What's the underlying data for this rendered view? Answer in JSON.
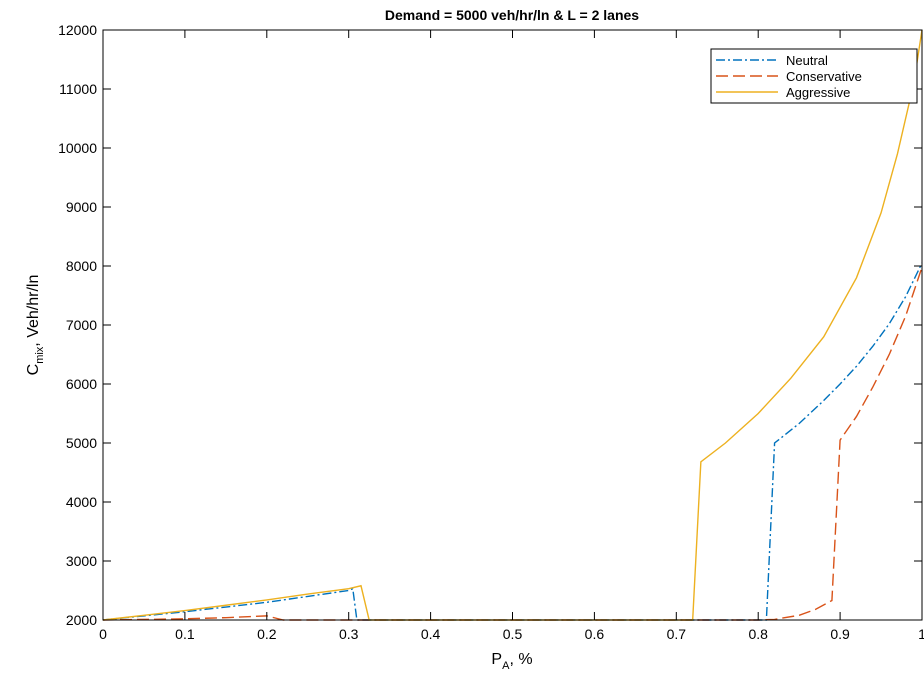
{
  "chart_data": {
    "type": "line",
    "title": "Demand = 5000 veh/hr/ln & L = 2 lanes",
    "xlabel": {
      "main": "P",
      "sub": "A",
      "suffix": ", %"
    },
    "ylabel": {
      "main": "C",
      "sub": "mix",
      "suffix": ", Veh/hr/ln"
    },
    "xlim": [
      0,
      1
    ],
    "ylim": [
      2000,
      12000
    ],
    "xticks": [
      0,
      0.1,
      0.2,
      0.3,
      0.4,
      0.5,
      0.6,
      0.7,
      0.8,
      0.9,
      1
    ],
    "xtick_labels": [
      "0",
      "0.1",
      "0.2",
      "0.3",
      "0.4",
      "0.5",
      "0.6",
      "0.7",
      "0.8",
      "0.9",
      "1"
    ],
    "yticks": [
      2000,
      3000,
      4000,
      5000,
      6000,
      7000,
      8000,
      9000,
      10000,
      11000,
      12000
    ],
    "ytick_labels": [
      "2000",
      "3000",
      "4000",
      "5000",
      "6000",
      "7000",
      "8000",
      "9000",
      "10000",
      "11000",
      "12000"
    ],
    "grid": false,
    "legend_position": "top-right",
    "series": [
      {
        "name": "Neutral",
        "color": "#0072BD",
        "dash": "dash-dot",
        "x": [
          0,
          0.05,
          0.1,
          0.15,
          0.2,
          0.25,
          0.3,
          0.305,
          0.31,
          0.32,
          0.4,
          0.5,
          0.6,
          0.7,
          0.8,
          0.81,
          0.82,
          0.85,
          0.88,
          0.9,
          0.92,
          0.94,
          0.96,
          0.98,
          1
        ],
        "y": [
          2000,
          2070,
          2140,
          2220,
          2300,
          2400,
          2500,
          2530,
          2000,
          2000,
          2000,
          2000,
          2000,
          2000,
          2000,
          2000,
          5000,
          5330,
          5720,
          6000,
          6300,
          6640,
          7020,
          7480,
          8050
        ]
      },
      {
        "name": "Conservative",
        "color": "#D95319",
        "dash": "dashed",
        "x": [
          0,
          0.1,
          0.15,
          0.2,
          0.22,
          0.25,
          0.3,
          0.4,
          0.5,
          0.6,
          0.7,
          0.8,
          0.82,
          0.85,
          0.87,
          0.89,
          0.9,
          0.92,
          0.94,
          0.96,
          0.98,
          1
        ],
        "y": [
          2000,
          2020,
          2040,
          2070,
          2000,
          2000,
          2000,
          2000,
          2000,
          2000,
          2000,
          2000,
          2010,
          2080,
          2180,
          2330,
          5050,
          5450,
          5950,
          6500,
          7150,
          7980
        ]
      },
      {
        "name": "Aggressive",
        "color": "#EDB120",
        "dash": "solid",
        "x": [
          0,
          0.05,
          0.1,
          0.15,
          0.2,
          0.25,
          0.3,
          0.315,
          0.325,
          0.4,
          0.5,
          0.6,
          0.7,
          0.72,
          0.73,
          0.76,
          0.8,
          0.84,
          0.88,
          0.92,
          0.95,
          0.97,
          0.99,
          1
        ],
        "y": [
          2000,
          2080,
          2160,
          2250,
          2340,
          2440,
          2530,
          2580,
          2000,
          2000,
          2000,
          2000,
          2000,
          2000,
          4680,
          5000,
          5500,
          6100,
          6800,
          7800,
          8900,
          9900,
          11100,
          12000
        ]
      }
    ]
  }
}
